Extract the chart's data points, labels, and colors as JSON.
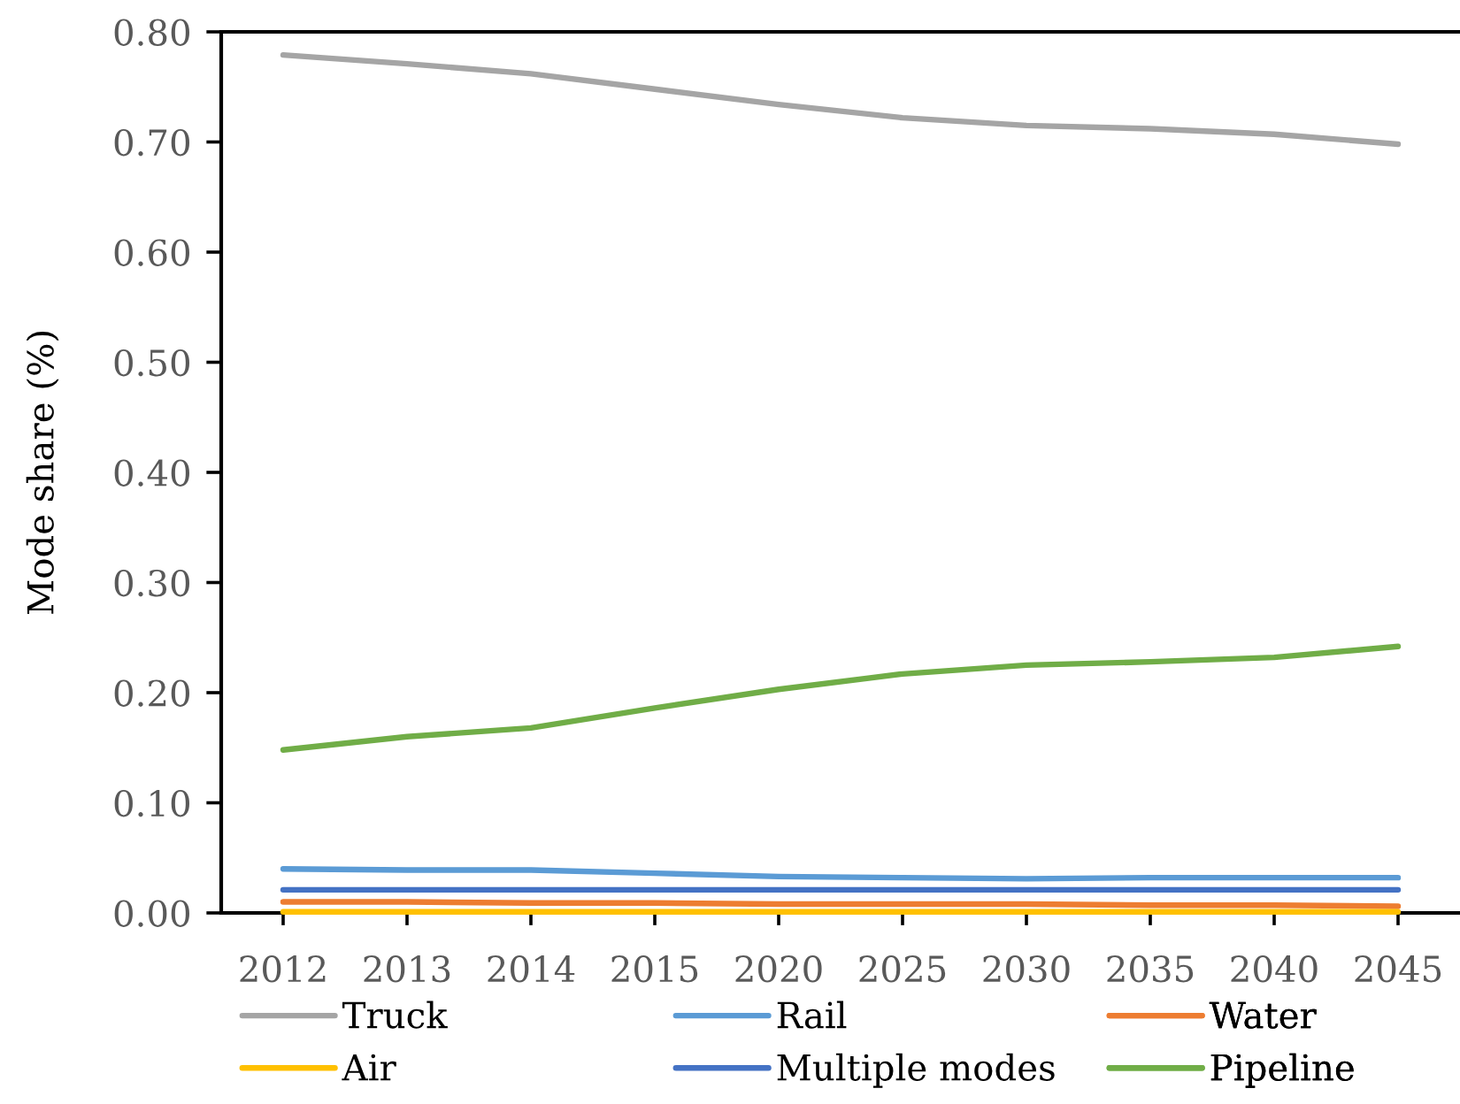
{
  "chart_data": {
    "type": "line",
    "ylabel": "Mode share (%)",
    "categories": [
      "2012",
      "2013",
      "2014",
      "2015",
      "2020",
      "2025",
      "2030",
      "2035",
      "2040",
      "2045"
    ],
    "series": [
      {
        "name": "Truck",
        "color": "#a5a5a5",
        "values": [
          0.779,
          0.771,
          0.762,
          0.748,
          0.734,
          0.722,
          0.715,
          0.712,
          0.707,
          0.698
        ]
      },
      {
        "name": "Rail",
        "color": "#5b9bd5",
        "values": [
          0.04,
          0.039,
          0.039,
          0.036,
          0.033,
          0.032,
          0.031,
          0.032,
          0.032,
          0.032
        ]
      },
      {
        "name": "Water",
        "color": "#ed7d31",
        "values": [
          0.01,
          0.01,
          0.009,
          0.009,
          0.008,
          0.008,
          0.008,
          0.007,
          0.007,
          0.006
        ]
      },
      {
        "name": "Air",
        "color": "#ffc000",
        "values": [
          0.001,
          0.001,
          0.001,
          0.001,
          0.001,
          0.001,
          0.001,
          0.001,
          0.001,
          0.001
        ]
      },
      {
        "name": "Multiple modes",
        "color": "#4472c4",
        "values": [
          0.021,
          0.021,
          0.021,
          0.021,
          0.021,
          0.021,
          0.021,
          0.021,
          0.021,
          0.021
        ]
      },
      {
        "name": "Pipeline",
        "color": "#70ad47",
        "values": [
          0.148,
          0.16,
          0.168,
          0.186,
          0.203,
          0.217,
          0.225,
          0.228,
          0.232,
          0.242
        ]
      }
    ],
    "ylim": [
      0,
      0.8
    ],
    "yticks": [
      {
        "value": 0,
        "label": "0.00"
      },
      {
        "value": 0.1,
        "label": "0.10"
      },
      {
        "value": 0.2,
        "label": "0.20"
      },
      {
        "value": 0.3,
        "label": "0.30"
      },
      {
        "value": 0.4,
        "label": "0.40"
      },
      {
        "value": 0.5,
        "label": "0.50"
      },
      {
        "value": 0.6,
        "label": "0.60"
      },
      {
        "value": 0.7,
        "label": "0.70"
      },
      {
        "value": 0.8,
        "label": "0.80"
      }
    ],
    "legend": "bottom"
  }
}
